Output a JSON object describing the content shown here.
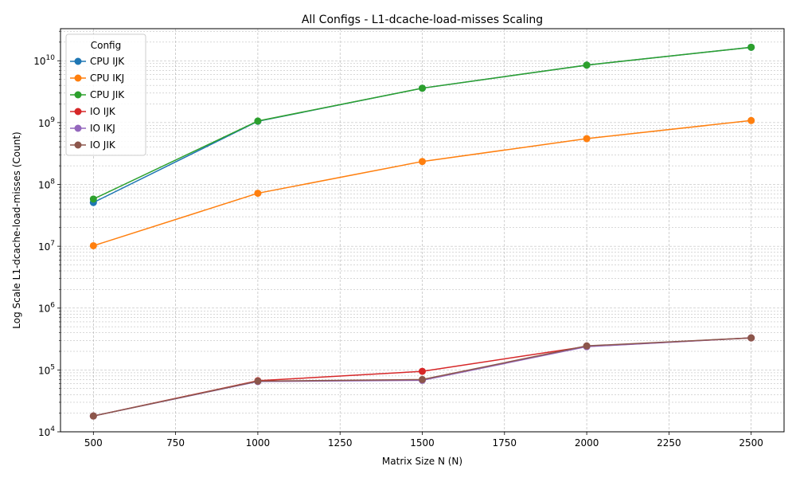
{
  "chart_data": {
    "type": "line",
    "title": "All Configs - L1-dcache-load-misses Scaling",
    "xlabel": "Matrix Size N (N)",
    "ylabel": "Log Scale L1-dcache-load-misses (Count)",
    "yscale": "log",
    "xlim": [
      400,
      2600
    ],
    "ylim": [
      10000,
      33000000000
    ],
    "x_ticks": [
      500,
      750,
      1000,
      1250,
      1500,
      1750,
      2000,
      2250,
      2500
    ],
    "y_ticks": [
      {
        "value": 10000,
        "base": "10",
        "exp": "4"
      },
      {
        "value": 100000,
        "base": "10",
        "exp": "5"
      },
      {
        "value": 1000000,
        "base": "10",
        "exp": "6"
      },
      {
        "value": 10000000,
        "base": "10",
        "exp": "7"
      },
      {
        "value": 100000000,
        "base": "10",
        "exp": "8"
      },
      {
        "value": 1000000000,
        "base": "10",
        "exp": "9"
      },
      {
        "value": 10000000000,
        "base": "10",
        "exp": "10"
      }
    ],
    "grid": true,
    "legend_title": "Config",
    "legend_position": "top-left",
    "x": [
      500,
      1000,
      1500,
      2000,
      2500
    ],
    "series": [
      {
        "name": "CPU IJK",
        "color": "#1f77b4",
        "values": [
          51000000,
          1050000000,
          3600000000,
          8500000000,
          16500000000
        ]
      },
      {
        "name": "CPU IKJ",
        "color": "#ff7f0e",
        "values": [
          10200000,
          72000000,
          235000000,
          550000000,
          1080000000
        ]
      },
      {
        "name": "CPU JIK",
        "color": "#2ca02c",
        "values": [
          58000000,
          1060000000,
          3600000000,
          8500000000,
          16500000000
        ]
      },
      {
        "name": "IO IJK",
        "color": "#d62728",
        "values": [
          18000,
          67000,
          95000,
          240000,
          330000
        ]
      },
      {
        "name": "IO IKJ",
        "color": "#9467bd",
        "values": [
          18000,
          65000,
          68000,
          238000,
          330000
        ]
      },
      {
        "name": "IO JIK",
        "color": "#8c564b",
        "values": [
          18000,
          66000,
          70000,
          245000,
          330000
        ]
      }
    ]
  }
}
